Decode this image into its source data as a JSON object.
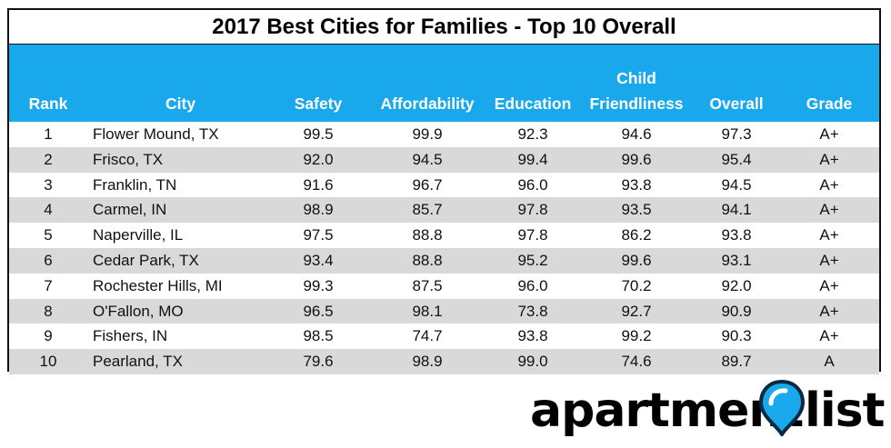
{
  "table": {
    "title": "2017 Best Cities for Families - Top 10 Overall",
    "headers": {
      "rank": "Rank",
      "city": "City",
      "safety": "Safety",
      "affordability": "Affordability",
      "education": "Education",
      "child_line1": "Child",
      "child_line2": "Friendliness",
      "overall": "Overall",
      "grade": "Grade"
    },
    "rows": [
      {
        "rank": "1",
        "city": "Flower Mound, TX",
        "safety": "99.5",
        "affordability": "99.9",
        "education": "92.3",
        "child": "94.6",
        "overall": "97.3",
        "grade": "A+"
      },
      {
        "rank": "2",
        "city": "Frisco, TX",
        "safety": "92.0",
        "affordability": "94.5",
        "education": "99.4",
        "child": "99.6",
        "overall": "95.4",
        "grade": "A+"
      },
      {
        "rank": "3",
        "city": "Franklin, TN",
        "safety": "91.6",
        "affordability": "96.7",
        "education": "96.0",
        "child": "93.8",
        "overall": "94.5",
        "grade": "A+"
      },
      {
        "rank": "4",
        "city": "Carmel, IN",
        "safety": "98.9",
        "affordability": "85.7",
        "education": "97.8",
        "child": "93.5",
        "overall": "94.1",
        "grade": "A+"
      },
      {
        "rank": "5",
        "city": "Naperville, IL",
        "safety": "97.5",
        "affordability": "88.8",
        "education": "97.8",
        "child": "86.2",
        "overall": "93.8",
        "grade": "A+"
      },
      {
        "rank": "6",
        "city": "Cedar Park, TX",
        "safety": "93.4",
        "affordability": "88.8",
        "education": "95.2",
        "child": "99.6",
        "overall": "93.1",
        "grade": "A+"
      },
      {
        "rank": "7",
        "city": "Rochester Hills, MI",
        "safety": "99.3",
        "affordability": "87.5",
        "education": "96.0",
        "child": "70.2",
        "overall": "92.0",
        "grade": "A+"
      },
      {
        "rank": "8",
        "city": "O'Fallon, MO",
        "safety": "96.5",
        "affordability": "98.1",
        "education": "73.8",
        "child": "92.7",
        "overall": "90.9",
        "grade": "A+"
      },
      {
        "rank": "9",
        "city": "Fishers, IN",
        "safety": "98.5",
        "affordability": "74.7",
        "education": "93.8",
        "child": "99.2",
        "overall": "90.3",
        "grade": "A+"
      },
      {
        "rank": "10",
        "city": "Pearland, TX",
        "safety": "79.6",
        "affordability": "98.9",
        "education": "99.0",
        "child": "74.6",
        "overall": "89.7",
        "grade": "A"
      }
    ]
  },
  "chart_data": {
    "type": "table",
    "title": "2017 Best Cities for Families - Top 10 Overall",
    "columns": [
      "Rank",
      "City",
      "Safety",
      "Affordability",
      "Education",
      "Child Friendliness",
      "Overall",
      "Grade"
    ],
    "rows": [
      [
        1,
        "Flower Mound, TX",
        99.5,
        99.9,
        92.3,
        94.6,
        97.3,
        "A+"
      ],
      [
        2,
        "Frisco, TX",
        92.0,
        94.5,
        99.4,
        99.6,
        95.4,
        "A+"
      ],
      [
        3,
        "Franklin, TN",
        91.6,
        96.7,
        96.0,
        93.8,
        94.5,
        "A+"
      ],
      [
        4,
        "Carmel, IN",
        98.9,
        85.7,
        97.8,
        93.5,
        94.1,
        "A+"
      ],
      [
        5,
        "Naperville, IL",
        97.5,
        88.8,
        97.8,
        86.2,
        93.8,
        "A+"
      ],
      [
        6,
        "Cedar Park, TX",
        93.4,
        88.8,
        95.2,
        99.6,
        93.1,
        "A+"
      ],
      [
        7,
        "Rochester Hills, MI",
        99.3,
        87.5,
        96.0,
        70.2,
        92.0,
        "A+"
      ],
      [
        8,
        "O'Fallon, MO",
        96.5,
        98.1,
        73.8,
        92.7,
        90.9,
        "A+"
      ],
      [
        9,
        "Fishers, IN",
        98.5,
        74.7,
        93.8,
        99.2,
        90.3,
        "A+"
      ],
      [
        10,
        "Pearland, TX",
        79.6,
        98.9,
        99.0,
        74.6,
        89.7,
        "A"
      ]
    ]
  },
  "logo": {
    "text_left": "apartment",
    "text_right": "list",
    "pin_color": "#1aa8ed"
  },
  "colors": {
    "header_bg": "#1aa8ed",
    "alt_row_bg": "#d9d9d9"
  }
}
